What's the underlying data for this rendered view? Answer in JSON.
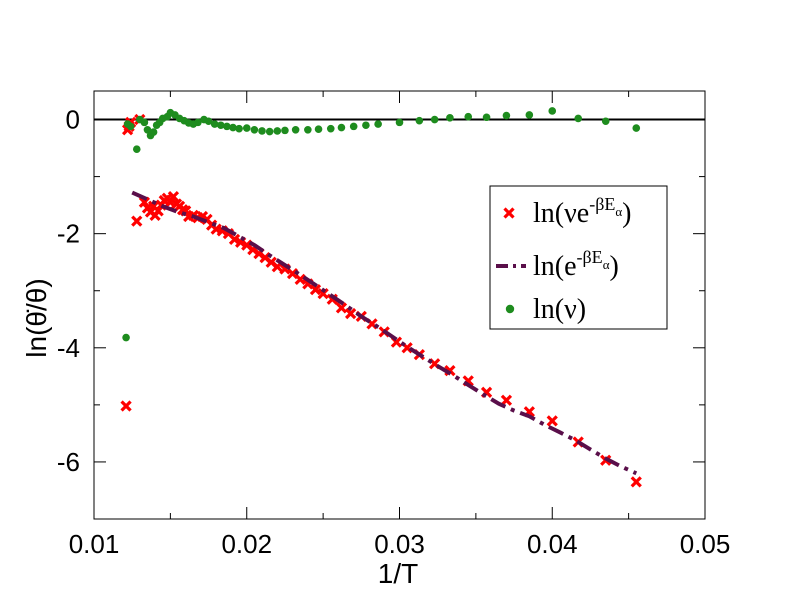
{
  "chart_data": {
    "type": "scatter",
    "title": "",
    "xlabel": "1/T",
    "ylabel": "ln(θ̇/θ)",
    "xlim": [
      0.01,
      0.05
    ],
    "ylim": [
      -7,
      0.5
    ],
    "xticks": [
      0.01,
      0.02,
      0.03,
      0.04,
      0.05
    ],
    "xtick_labels": [
      "0.01",
      "0.02",
      "0.03",
      "0.04",
      "0.05"
    ],
    "yticks": [
      0,
      -2,
      -4,
      -6
    ],
    "ytick_labels": [
      "0",
      "-2",
      "-4",
      "-6"
    ],
    "reference_line": {
      "y": 0,
      "color": "#000000"
    },
    "grid": false,
    "legend_position": "right-center",
    "series": [
      {
        "name": "ln(νe^{-βE_α})",
        "label_main": "ln(νe",
        "label_sup": "-βE",
        "label_sub": "α",
        "label_close": ")",
        "style": "x-marker",
        "color": "#ff0000",
        "points": [
          [
            0.0121,
            -5.02
          ],
          [
            0.0122,
            -0.18
          ],
          [
            0.0123,
            -0.12
          ],
          [
            0.0124,
            -0.05
          ],
          [
            0.0128,
            -1.78
          ],
          [
            0.013,
            0.0
          ],
          [
            0.0133,
            -1.45
          ],
          [
            0.0135,
            -1.55
          ],
          [
            0.0137,
            -1.62
          ],
          [
            0.0139,
            -1.52
          ],
          [
            0.014,
            -1.68
          ],
          [
            0.0142,
            -1.6
          ],
          [
            0.0144,
            -1.5
          ],
          [
            0.0146,
            -1.42
          ],
          [
            0.0148,
            -1.38
          ],
          [
            0.015,
            -1.45
          ],
          [
            0.0152,
            -1.35
          ],
          [
            0.0154,
            -1.48
          ],
          [
            0.0156,
            -1.52
          ],
          [
            0.0158,
            -1.58
          ],
          [
            0.016,
            -1.6
          ],
          [
            0.0162,
            -1.7
          ],
          [
            0.0165,
            -1.68
          ],
          [
            0.0168,
            -1.72
          ],
          [
            0.0171,
            -1.7
          ],
          [
            0.0174,
            -1.75
          ],
          [
            0.0177,
            -1.85
          ],
          [
            0.018,
            -1.92
          ],
          [
            0.0184,
            -1.95
          ],
          [
            0.0188,
            -2.0
          ],
          [
            0.0192,
            -2.1
          ],
          [
            0.0196,
            -2.15
          ],
          [
            0.02,
            -2.2
          ],
          [
            0.0204,
            -2.28
          ],
          [
            0.0208,
            -2.35
          ],
          [
            0.0212,
            -2.42
          ],
          [
            0.0216,
            -2.5
          ],
          [
            0.022,
            -2.58
          ],
          [
            0.0225,
            -2.62
          ],
          [
            0.023,
            -2.7
          ],
          [
            0.0235,
            -2.8
          ],
          [
            0.024,
            -2.88
          ],
          [
            0.0245,
            -2.98
          ],
          [
            0.025,
            -3.05
          ],
          [
            0.0256,
            -3.15
          ],
          [
            0.0262,
            -3.3
          ],
          [
            0.0268,
            -3.4
          ],
          [
            0.0275,
            -3.45
          ],
          [
            0.0282,
            -3.58
          ],
          [
            0.029,
            -3.72
          ],
          [
            0.0298,
            -3.9
          ],
          [
            0.0305,
            -4.0
          ],
          [
            0.0313,
            -4.12
          ],
          [
            0.0323,
            -4.28
          ],
          [
            0.0333,
            -4.4
          ],
          [
            0.0345,
            -4.58
          ],
          [
            0.0357,
            -4.78
          ],
          [
            0.037,
            -4.92
          ],
          [
            0.0385,
            -5.12
          ],
          [
            0.04,
            -5.28
          ],
          [
            0.0417,
            -5.65
          ],
          [
            0.0435,
            -5.97
          ],
          [
            0.0455,
            -6.35
          ]
        ]
      },
      {
        "name": "ln(e^{-βE_α})",
        "label_main": "ln(e",
        "label_sup": "-βE",
        "label_sub": "α",
        "label_close": ")",
        "style": "dash-dot-line",
        "color": "#5a0f4a",
        "points": [
          [
            0.0125,
            -1.28
          ],
          [
            0.0135,
            -1.4
          ],
          [
            0.0145,
            -1.52
          ],
          [
            0.0155,
            -1.62
          ],
          [
            0.0165,
            -1.7
          ],
          [
            0.0175,
            -1.8
          ],
          [
            0.0185,
            -1.9
          ],
          [
            0.0195,
            -2.05
          ],
          [
            0.0205,
            -2.2
          ],
          [
            0.0215,
            -2.38
          ],
          [
            0.0225,
            -2.55
          ],
          [
            0.0235,
            -2.72
          ],
          [
            0.0245,
            -2.9
          ],
          [
            0.0255,
            -3.08
          ],
          [
            0.0265,
            -3.26
          ],
          [
            0.0275,
            -3.45
          ],
          [
            0.0285,
            -3.62
          ],
          [
            0.0295,
            -3.8
          ],
          [
            0.0305,
            -3.98
          ],
          [
            0.0315,
            -4.15
          ],
          [
            0.0325,
            -4.32
          ],
          [
            0.0335,
            -4.48
          ],
          [
            0.0345,
            -4.65
          ],
          [
            0.0355,
            -4.82
          ],
          [
            0.0365,
            -4.98
          ],
          [
            0.0375,
            -5.1
          ],
          [
            0.0385,
            -5.2
          ],
          [
            0.0395,
            -5.35
          ],
          [
            0.0405,
            -5.48
          ],
          [
            0.0415,
            -5.62
          ],
          [
            0.0425,
            -5.78
          ],
          [
            0.0435,
            -5.94
          ],
          [
            0.0445,
            -6.08
          ],
          [
            0.0455,
            -6.2
          ]
        ]
      },
      {
        "name": "ln(ν)",
        "label_main": "ln(ν)",
        "label_sup": "",
        "label_sub": "",
        "label_close": "",
        "style": "circle-marker",
        "color": "#1e8c1e",
        "points": [
          [
            0.0121,
            -3.82
          ],
          [
            0.0122,
            -0.08
          ],
          [
            0.0124,
            -0.12
          ],
          [
            0.0128,
            -0.52
          ],
          [
            0.013,
            0.0
          ],
          [
            0.0133,
            -0.05
          ],
          [
            0.0135,
            -0.18
          ],
          [
            0.0137,
            -0.28
          ],
          [
            0.0139,
            -0.22
          ],
          [
            0.0141,
            -0.1
          ],
          [
            0.0143,
            -0.05
          ],
          [
            0.0145,
            0.02
          ],
          [
            0.0148,
            0.05
          ],
          [
            0.015,
            0.12
          ],
          [
            0.0153,
            0.08
          ],
          [
            0.0156,
            0.02
          ],
          [
            0.0159,
            -0.02
          ],
          [
            0.0162,
            -0.06
          ],
          [
            0.0165,
            -0.08
          ],
          [
            0.0168,
            -0.05
          ],
          [
            0.0172,
            0.0
          ],
          [
            0.0175,
            -0.03
          ],
          [
            0.0179,
            -0.08
          ],
          [
            0.0183,
            -0.1
          ],
          [
            0.0187,
            -0.12
          ],
          [
            0.0191,
            -0.14
          ],
          [
            0.0195,
            -0.16
          ],
          [
            0.02,
            -0.15
          ],
          [
            0.0205,
            -0.18
          ],
          [
            0.021,
            -0.2
          ],
          [
            0.0215,
            -0.21
          ],
          [
            0.022,
            -0.2
          ],
          [
            0.0225,
            -0.19
          ],
          [
            0.0232,
            -0.18
          ],
          [
            0.024,
            -0.18
          ],
          [
            0.0247,
            -0.17
          ],
          [
            0.0255,
            -0.16
          ],
          [
            0.0262,
            -0.14
          ],
          [
            0.027,
            -0.12
          ],
          [
            0.0278,
            -0.1
          ],
          [
            0.0286,
            -0.08
          ],
          [
            0.03,
            -0.05
          ],
          [
            0.0313,
            -0.02
          ],
          [
            0.0323,
            0.0
          ],
          [
            0.0333,
            0.03
          ],
          [
            0.0345,
            0.05
          ],
          [
            0.0357,
            0.04
          ],
          [
            0.037,
            0.07
          ],
          [
            0.0385,
            0.08
          ],
          [
            0.04,
            0.15
          ],
          [
            0.0417,
            0.02
          ],
          [
            0.0435,
            -0.03
          ],
          [
            0.0455,
            -0.15
          ]
        ]
      }
    ]
  }
}
